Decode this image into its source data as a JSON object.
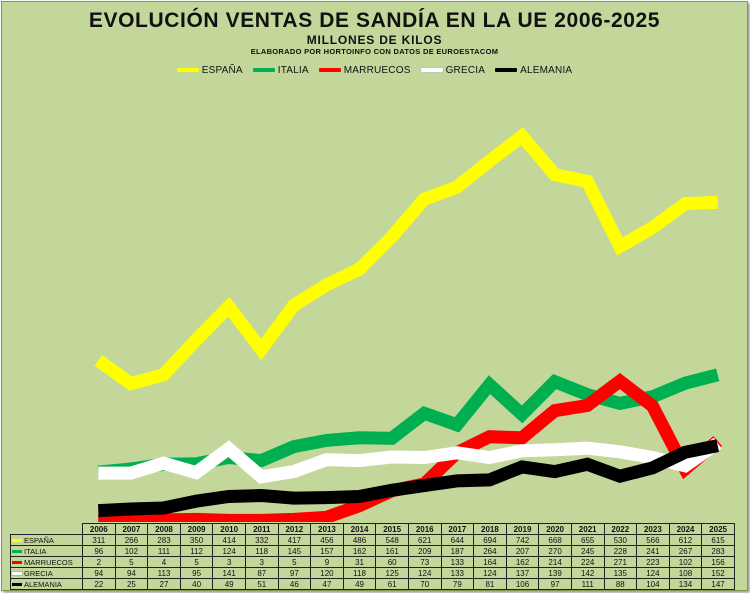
{
  "chart_data": {
    "type": "line",
    "title": "EVOLUCIÓN VENTAS DE SANDÍA EN LA UE 2006-2025",
    "subtitle": "MILLONES DE KILOS",
    "source": "ELABORADO POR HORTOINFO CON DATOS DE EUROESTACOM",
    "categories": [
      "2006",
      "2007",
      "2008",
      "2009",
      "2010",
      "2011",
      "2012",
      "2013",
      "2014",
      "2015",
      "2016",
      "2017",
      "2018",
      "2019",
      "2020",
      "2021",
      "2022",
      "2023",
      "2024",
      "2025"
    ],
    "ylim": [
      0,
      800
    ],
    "grid": false,
    "legend_position": "top-center",
    "series": [
      {
        "name": "ESPAÑA",
        "color": "#ffff00",
        "values": [
          311,
          266,
          283,
          350,
          414,
          332,
          417,
          456,
          486,
          548,
          621,
          644,
          694,
          742,
          668,
          655,
          530,
          566,
          612,
          615
        ]
      },
      {
        "name": "ITALIA",
        "color": "#00b050",
        "values": [
          96,
          102,
          111,
          112,
          124,
          118,
          145,
          157,
          162,
          161,
          209,
          187,
          264,
          207,
          270,
          245,
          228,
          241,
          267,
          283
        ]
      },
      {
        "name": "MARRUECOS",
        "color": "#ff0000",
        "values": [
          2,
          5,
          4,
          5,
          3,
          3,
          5,
          9,
          31,
          60,
          73,
          133,
          164,
          162,
          214,
          224,
          271,
          223,
          102,
          156
        ]
      },
      {
        "name": "GRECIA",
        "color": "#ffffff",
        "values": [
          94,
          94,
          113,
          95,
          141,
          87,
          97,
          120,
          118,
          125,
          124,
          133,
          124,
          137,
          139,
          142,
          135,
          124,
          108,
          152
        ]
      },
      {
        "name": "ALEMANIA",
        "color": "#000000",
        "values": [
          22,
          25,
          27,
          40,
          49,
          51,
          46,
          47,
          49,
          61,
          70,
          79,
          81,
          106,
          97,
          111,
          88,
          104,
          134,
          147
        ]
      }
    ]
  }
}
